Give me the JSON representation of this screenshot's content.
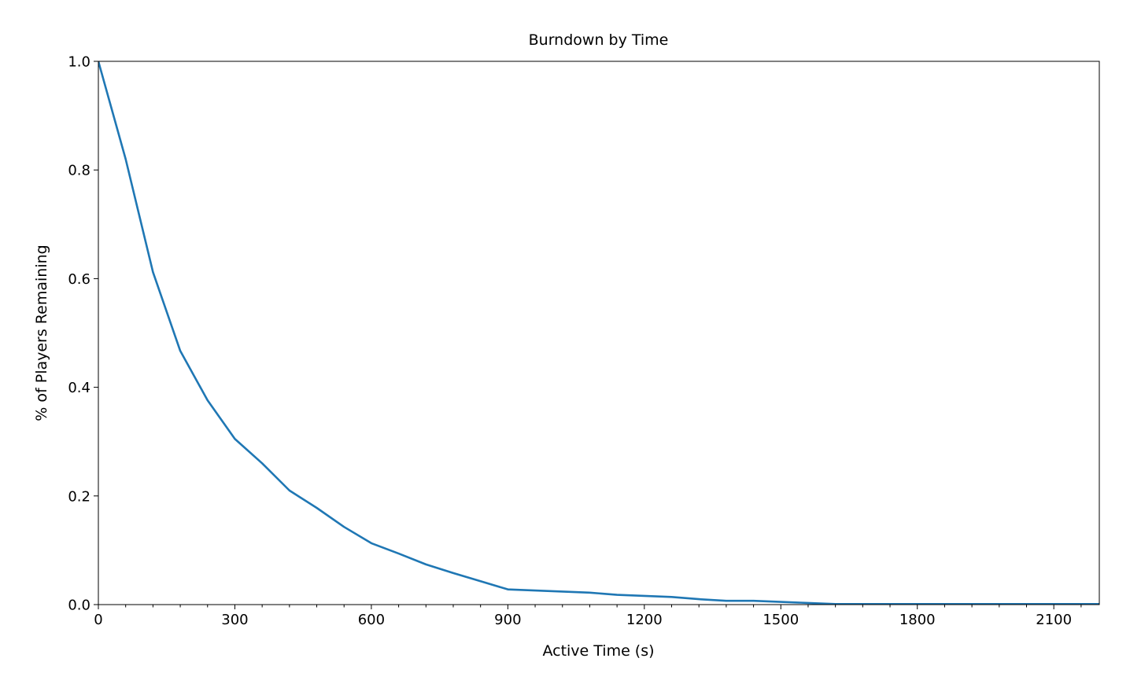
{
  "chart_data": {
    "type": "line",
    "title": "Burndown by Time",
    "xlabel": "Active Time (s)",
    "ylabel": "% of Players Remaining",
    "xlim": [
      0,
      2200
    ],
    "ylim": [
      0,
      1.0
    ],
    "x_ticks": [
      0,
      300,
      600,
      900,
      1200,
      1500,
      1800,
      2100
    ],
    "x_tick_labels": [
      "0",
      "300",
      "600",
      "900",
      "1200",
      "1500",
      "1800",
      "2100"
    ],
    "x_minor_step": 60,
    "y_ticks": [
      0.0,
      0.2,
      0.4,
      0.6,
      0.8,
      1.0
    ],
    "y_tick_labels": [
      "0.0",
      "0.2",
      "0.4",
      "0.6",
      "0.8",
      "1.0"
    ],
    "grid": false,
    "legend": "none",
    "series": [
      {
        "color": "#1f77b4",
        "x": [
          0,
          60,
          120,
          180,
          240,
          300,
          360,
          420,
          480,
          540,
          600,
          660,
          720,
          780,
          840,
          900,
          960,
          1020,
          1080,
          1140,
          1200,
          1260,
          1320,
          1380,
          1440,
          1500,
          1560,
          1620,
          1680,
          1740,
          1800,
          1860,
          1920,
          1980,
          2040,
          2100,
          2160,
          2200
        ],
        "y": [
          1.0,
          0.82,
          0.612,
          0.467,
          0.376,
          0.305,
          0.26,
          0.21,
          0.178,
          0.143,
          0.113,
          0.094,
          0.074,
          0.058,
          0.043,
          0.028,
          0.026,
          0.024,
          0.022,
          0.018,
          0.016,
          0.014,
          0.01,
          0.007,
          0.007,
          0.005,
          0.003,
          0.001,
          0.001,
          0.001,
          0.001,
          0.001,
          0.001,
          0.001,
          0.001,
          0.001,
          0.001,
          0.001
        ]
      }
    ]
  }
}
